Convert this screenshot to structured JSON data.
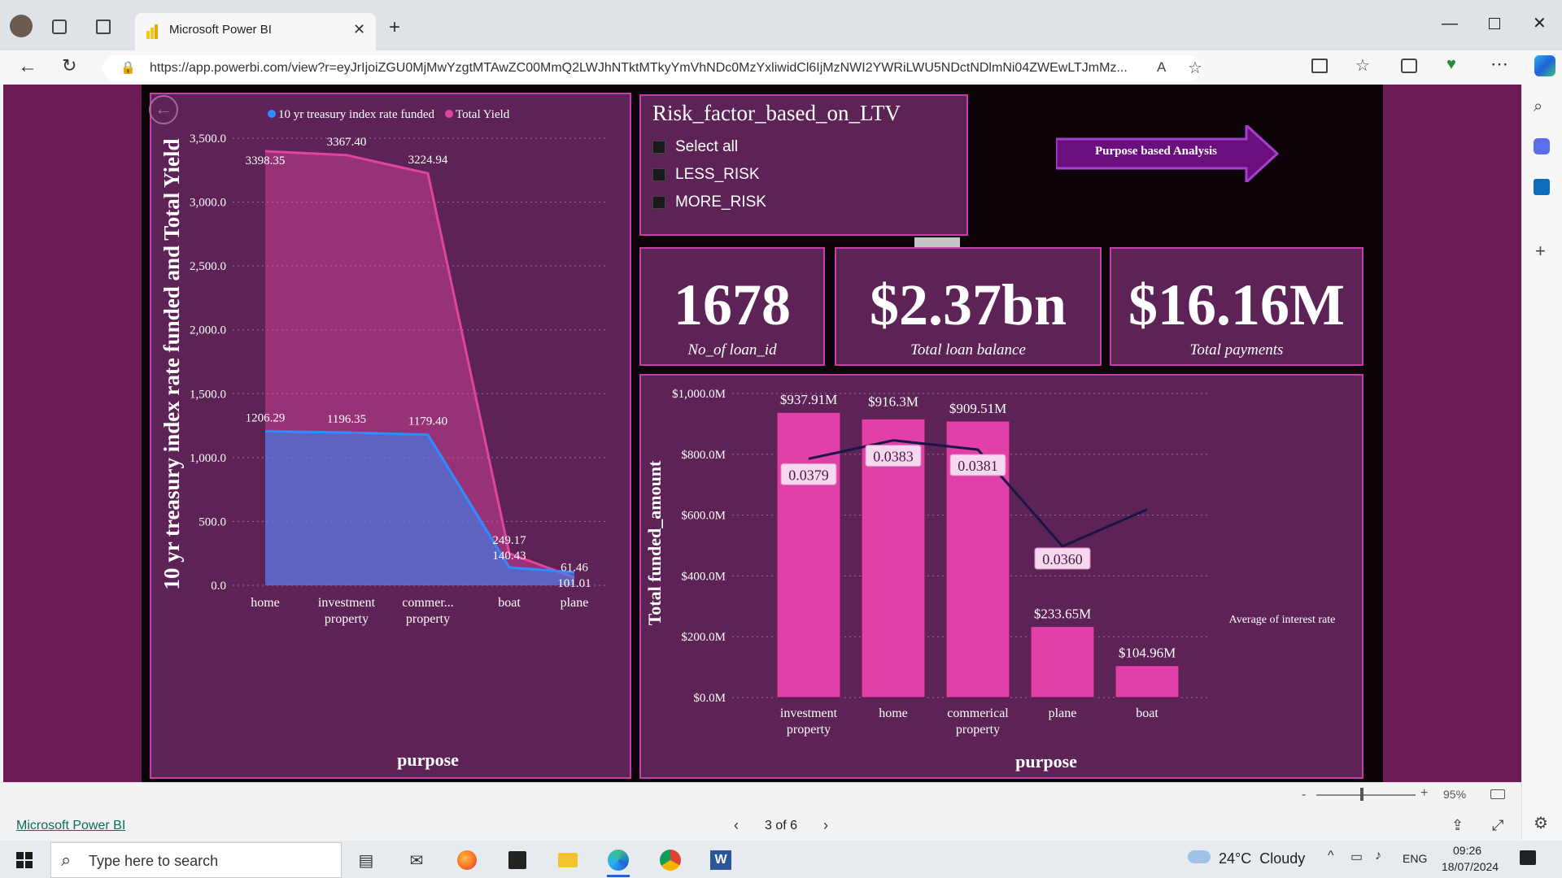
{
  "browser": {
    "tab_title": "Microsoft Power BI",
    "url": "https://app.powerbi.com/view?r=eyJrIjoiZGU0MjMwYzgtMTAwZC00MmQ2LWJhNTktMTkyYmVhNDc0MzYxliwidCl6IjMzNWI2YWRiLWU5NDctNDlmNi04ZWEwLTJmMz...",
    "zoom": "95%"
  },
  "report": {
    "slicer": {
      "title": "Risk_factor_based_on_LTV",
      "options": [
        "Select all",
        "LESS_RISK",
        "MORE_RISK"
      ]
    },
    "nav_button_label": "Purpose based Analysis",
    "kpis": [
      {
        "value": "1678",
        "label": "No_of loan_id"
      },
      {
        "value": "$2.37bn",
        "label": "Total loan balance"
      },
      {
        "value": "$16.16M",
        "label": "Total payments"
      }
    ],
    "footer_link": "Microsoft Power BI",
    "page_indicator": "3 of 6"
  },
  "chart_data": [
    {
      "type": "area",
      "legend": [
        "10 yr treasury index rate funded",
        "Total Yield"
      ],
      "legend_position": "top",
      "ylabel": "10 yr treasury index rate funded and Total Yield",
      "xlabel": "purpose",
      "categories": [
        "home",
        "investment property",
        "commer... property",
        "boat",
        "plane"
      ],
      "series": [
        {
          "name": "10 yr treasury index rate funded",
          "values": [
            1206.29,
            1196.35,
            1179.4,
            140.43,
            101.01
          ],
          "labels": [
            "1206.29",
            "1196.35",
            "1179.40",
            "140.43",
            "101.01"
          ],
          "color": "#2f8cff"
        },
        {
          "name": "Total Yield",
          "values": [
            3398.35,
            3367.4,
            3224.94,
            249.17,
            61.46
          ],
          "labels": [
            "3398.35",
            "3367.40",
            "3224.94",
            "249.17",
            "61.46"
          ],
          "color": "#e0449e"
        }
      ],
      "yticks": [
        "0.0",
        "500.0",
        "1,000.0",
        "1,500.0",
        "2,000.0",
        "2,500.0",
        "3,000.0",
        "3,500.0"
      ],
      "ylim": [
        0,
        3500
      ],
      "grid": true
    },
    {
      "type": "bar",
      "ylabel": "Total funded_amount",
      "xlabel": "purpose",
      "categories": [
        "investment property",
        "home",
        "commerical property",
        "plane",
        "boat"
      ],
      "series": [
        {
          "name": "Total funded_amount",
          "values": [
            937.91,
            916.3,
            909.51,
            233.65,
            104.96
          ],
          "labels": [
            "$937.91M",
            "$916.3M",
            "$909.51M",
            "$233.65M",
            "$104.96M"
          ],
          "color": "#e040a8"
        },
        {
          "name": "Average of interest rate",
          "values": [
            0.0379,
            0.0383,
            0.0381,
            0.036,
            0.0368
          ],
          "labels": [
            "0.0379",
            "0.0383",
            "0.0381",
            "0.0360",
            ""
          ],
          "color": "#1b1447"
        }
      ],
      "yticks": [
        "$0.0M",
        "$200.0M",
        "$400.0M",
        "$600.0M",
        "$800.0M",
        "$1,000.0M"
      ],
      "ylim": [
        0,
        1000
      ],
      "secondary_ylim": [
        0.033,
        0.039
      ],
      "grid": true
    }
  ],
  "taskbar": {
    "search_placeholder": "Type here to search",
    "weather": "24°C  Cloudy",
    "language": "ENG",
    "time": "09:26",
    "date": "18/07/2024"
  }
}
